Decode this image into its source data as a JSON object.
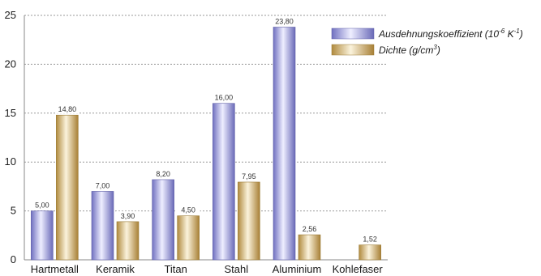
{
  "chart_data": {
    "type": "bar",
    "categories": [
      "Hartmetall",
      "Keramik",
      "Titan",
      "Stahl",
      "Aluminium",
      "Kohlefaser"
    ],
    "series": [
      {
        "name": "Ausdehnungskoeffizient (10-6 K-1)",
        "name_parts": {
          "base": "Ausdehnungskoeffizient (10",
          "sup1": "-6",
          "mid": " K",
          "sup2": "-1",
          "end": ")"
        },
        "color": "#9a9ae0",
        "values": [
          5.0,
          7.0,
          8.2,
          16.0,
          23.8,
          null
        ],
        "labels": [
          "5,00",
          "7,00",
          "8,20",
          "16,00",
          "23,80",
          ""
        ]
      },
      {
        "name": "Dichte (g/cm3)",
        "name_parts": {
          "base": "Dichte (g/cm",
          "sup1": "3",
          "end": ")"
        },
        "color": "#d2b472",
        "values": [
          14.8,
          3.9,
          4.5,
          7.95,
          2.56,
          1.52
        ],
        "labels": [
          "14,80",
          "3,90",
          "4,50",
          "7,95",
          "2,56",
          "1,52"
        ]
      }
    ],
    "ylim": [
      0,
      25
    ],
    "yticks": [
      0,
      5,
      10,
      15,
      20,
      25
    ],
    "title": "",
    "xlabel": "",
    "ylabel": "",
    "grid": "dashed horizontal",
    "legend_position": "top-right"
  }
}
